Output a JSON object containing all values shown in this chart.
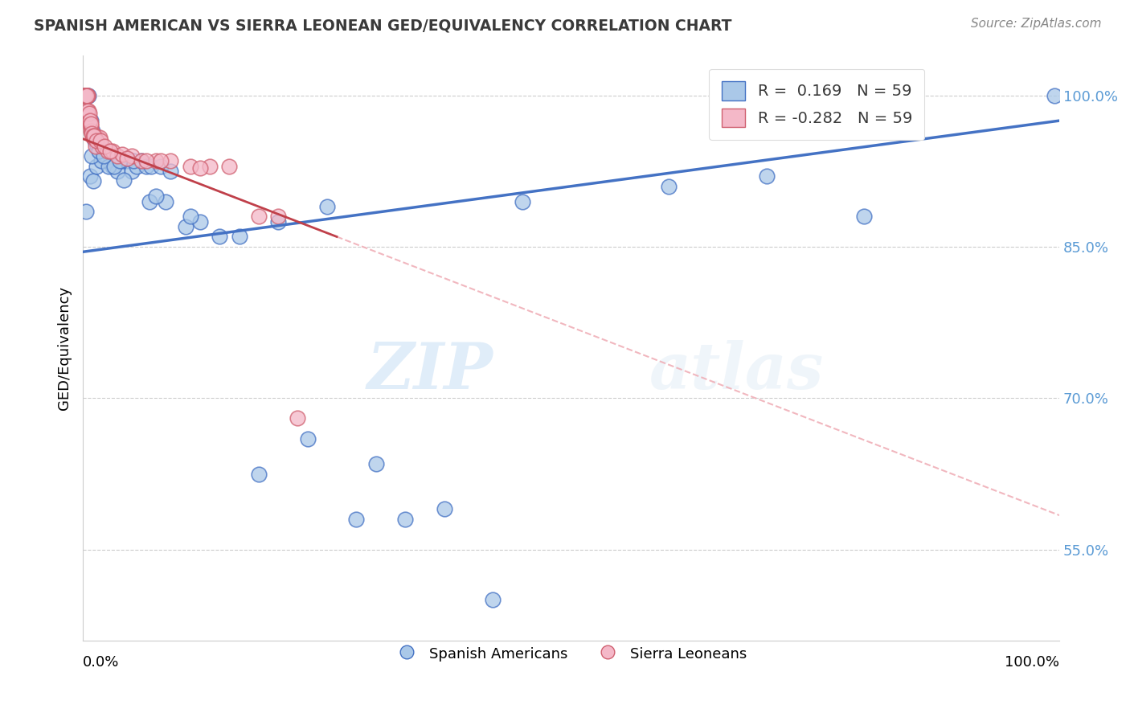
{
  "title": "SPANISH AMERICAN VS SIERRA LEONEAN GED/EQUIVALENCY CORRELATION CHART",
  "source": "Source: ZipAtlas.com",
  "ylabel": "GED/Equivalency",
  "yticks": [
    0.55,
    0.7,
    0.85,
    1.0
  ],
  "ytick_labels": [
    "55.0%",
    "70.0%",
    "85.0%",
    "100.0%"
  ],
  "xlim": [
    0.0,
    100.0
  ],
  "ylim": [
    0.46,
    1.04
  ],
  "blue_color": "#aac8e8",
  "blue_edge": "#4472c4",
  "pink_color": "#f4b8c8",
  "pink_edge": "#d06070",
  "trend_blue": "#4472c4",
  "trend_pink_color": "#c0404a",
  "diag_color": "#f0b0b8",
  "legend_label1": "Spanish Americans",
  "legend_label2": "Sierra Leoneans",
  "watermark": "ZIPatlas",
  "blue_trend_x0": 0.0,
  "blue_trend_y0": 0.845,
  "blue_trend_x1": 100.0,
  "blue_trend_y1": 0.975,
  "pink_trend_x0": 0.0,
  "pink_trend_y0": 0.957,
  "pink_trend_x1": 26.0,
  "pink_trend_y1": 0.86,
  "blue_x": [
    0.2,
    0.4,
    0.5,
    0.6,
    0.8,
    1.0,
    1.2,
    1.5,
    1.7,
    2.0,
    2.3,
    2.5,
    2.8,
    3.0,
    3.5,
    4.0,
    4.5,
    5.0,
    5.5,
    6.0,
    6.5,
    7.0,
    8.0,
    9.0,
    10.5,
    12.0,
    14.0,
    18.0,
    23.0,
    30.0,
    33.0,
    37.0,
    42.0,
    99.5,
    0.3,
    0.7,
    1.1,
    1.4,
    1.9,
    2.6,
    3.2,
    4.2,
    5.2,
    6.8,
    8.5,
    11.0,
    16.0,
    25.0,
    45.0,
    60.0,
    70.0,
    80.0,
    0.9,
    1.6,
    2.1,
    3.8,
    7.5,
    20.0,
    28.0
  ],
  "blue_y": [
    1.0,
    1.0,
    1.0,
    1.0,
    0.975,
    0.965,
    0.955,
    0.95,
    0.945,
    0.94,
    0.94,
    0.935,
    0.94,
    0.93,
    0.925,
    0.935,
    0.935,
    0.925,
    0.93,
    0.935,
    0.93,
    0.93,
    0.93,
    0.925,
    0.87,
    0.875,
    0.86,
    0.625,
    0.66,
    0.635,
    0.58,
    0.59,
    0.5,
    1.0,
    0.885,
    0.92,
    0.915,
    0.93,
    0.935,
    0.93,
    0.93,
    0.916,
    0.935,
    0.895,
    0.895,
    0.88,
    0.86,
    0.89,
    0.895,
    0.91,
    0.92,
    0.88,
    0.94,
    0.945,
    0.94,
    0.935,
    0.9,
    0.875,
    0.58
  ],
  "pink_x": [
    0.05,
    0.1,
    0.15,
    0.2,
    0.25,
    0.3,
    0.35,
    0.4,
    0.45,
    0.5,
    0.55,
    0.6,
    0.65,
    0.7,
    0.75,
    0.8,
    0.85,
    0.9,
    0.95,
    1.0,
    1.1,
    1.2,
    1.3,
    1.5,
    1.7,
    2.0,
    2.5,
    3.0,
    3.5,
    4.0,
    5.0,
    6.0,
    7.5,
    9.0,
    11.0,
    13.0,
    15.0,
    18.0,
    22.0,
    0.12,
    0.22,
    0.32,
    0.42,
    0.52,
    0.62,
    0.72,
    0.82,
    0.92,
    1.05,
    1.15,
    1.4,
    1.8,
    2.2,
    2.8,
    4.5,
    6.5,
    8.0,
    12.0,
    20.0
  ],
  "pink_y": [
    1.0,
    1.0,
    1.0,
    1.0,
    1.0,
    1.0,
    1.0,
    1.0,
    1.0,
    1.0,
    0.985,
    0.98,
    0.975,
    0.975,
    0.97,
    0.97,
    0.965,
    0.965,
    0.96,
    0.96,
    0.958,
    0.96,
    0.95,
    0.958,
    0.958,
    0.95,
    0.945,
    0.945,
    0.94,
    0.942,
    0.94,
    0.935,
    0.935,
    0.935,
    0.93,
    0.93,
    0.93,
    0.88,
    0.68,
    1.0,
    1.0,
    1.0,
    1.0,
    0.985,
    0.982,
    0.975,
    0.972,
    0.962,
    0.96,
    0.96,
    0.955,
    0.955,
    0.95,
    0.945,
    0.938,
    0.935,
    0.935,
    0.928,
    0.88
  ]
}
